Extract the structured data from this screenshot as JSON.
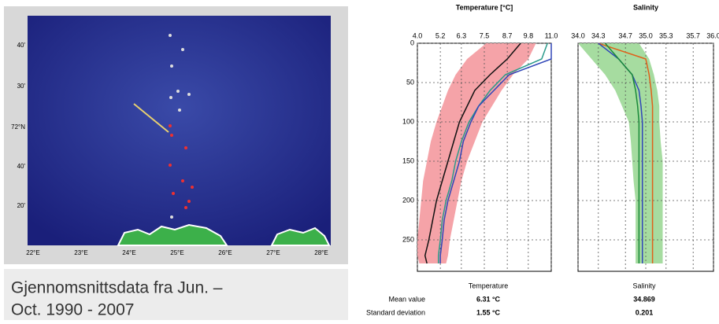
{
  "map": {
    "x_labels": [
      "22°E",
      "23°E",
      "24°E",
      "25°E",
      "26°E",
      "27°E",
      "28°E"
    ],
    "y_labels": [
      "40'",
      "30'",
      "72°N",
      "40'",
      "20'"
    ]
  },
  "caption": [
    "Gjennomsnittsdata fra Jun. –",
    "Oct. 1990 - 2007"
  ],
  "stats": {
    "row_labels": [
      "Mean value",
      "Standard deviation"
    ],
    "temperature": {
      "label": "Temperature",
      "mean": "6.31 °C",
      "sd": "1.55 °C"
    },
    "salinity": {
      "label": "Salinity",
      "mean": "34.869",
      "sd": "0.201"
    }
  },
  "chart_data": [
    {
      "type": "line",
      "title": "Temperature [°C]",
      "y": [
        0,
        20,
        40,
        60,
        80,
        100,
        125,
        150,
        175,
        200,
        225,
        250,
        270,
        280
      ],
      "band": {
        "color": "#f5a3a8",
        "lower": [
          7.6,
          6.6,
          6.0,
          5.6,
          5.3,
          5.0,
          4.7,
          4.5,
          4.3,
          4.2,
          4.1,
          4.0,
          4.0,
          4.1
        ],
        "upper": [
          10.2,
          9.8,
          9.0,
          8.4,
          7.9,
          7.4,
          7.0,
          6.6,
          6.3,
          6.1,
          5.9,
          5.7,
          5.6,
          5.5
        ]
      },
      "series": [
        {
          "color": "#2a9a8a",
          "values": [
            10.8,
            10.5,
            8.6,
            7.8,
            7.2,
            6.7,
            6.3,
            6.0,
            5.8,
            5.5,
            5.3,
            5.2,
            5.1,
            5.1
          ]
        },
        {
          "color": "#3046b8",
          "values": [
            11.0,
            11.0,
            8.8,
            8.0,
            7.2,
            6.8,
            6.4,
            6.2,
            5.9,
            5.6,
            5.4,
            5.3,
            5.2,
            5.2
          ]
        },
        {
          "color": "#111111",
          "values": [
            9.4,
            8.7,
            7.8,
            7.0,
            6.6,
            6.2,
            5.9,
            5.6,
            5.3,
            5.0,
            4.8,
            4.6,
            4.4,
            4.5
          ]
        }
      ],
      "xlim": [
        4.0,
        11.0
      ],
      "xticks": [
        {
          "value": 4.0,
          "label": "4.0"
        },
        5.2,
        6.3,
        7.5,
        8.7,
        9.8,
        {
          "value": 11.0,
          "label": "11.0"
        }
      ],
      "ylim": [
        0,
        290
      ],
      "yticks": [
        0,
        50,
        100,
        150,
        200,
        250
      ],
      "grid": true
    },
    {
      "type": "line",
      "title": "Salinity",
      "y": [
        0,
        20,
        40,
        60,
        80,
        100,
        125,
        150,
        175,
        200,
        225,
        250,
        270,
        280
      ],
      "band": {
        "color": "#a6dca0",
        "lower": [
          34.0,
          34.2,
          34.4,
          34.55,
          34.65,
          34.75,
          34.78,
          34.8,
          34.82,
          34.85,
          34.85,
          34.85,
          34.85,
          34.85
        ],
        "upper": [
          34.9,
          35.05,
          35.12,
          35.17,
          35.2,
          35.2,
          35.22,
          35.25,
          35.25,
          35.25,
          35.25,
          35.25,
          35.25,
          35.25
        ]
      },
      "series": [
        {
          "color": "#e0601a",
          "values": [
            34.3,
            35.0,
            35.05,
            35.08,
            35.1,
            35.1,
            35.1,
            35.1,
            35.1,
            35.1,
            35.1,
            35.1,
            35.1,
            35.1
          ]
        },
        {
          "color": "#3046b8",
          "values": [
            34.3,
            34.6,
            34.8,
            34.9,
            34.93,
            34.95,
            34.95,
            34.95,
            34.95,
            34.95,
            34.95,
            34.95,
            34.95,
            34.95
          ]
        },
        {
          "color": "#1a8a3a",
          "values": [
            34.4,
            34.6,
            34.8,
            34.85,
            34.88,
            34.9,
            34.9,
            34.9,
            34.9,
            34.9,
            34.9,
            34.9,
            34.9,
            34.9
          ]
        }
      ],
      "xlim": [
        {
          "value": 34.0,
          "label": "34.0"
        },
        {
          "value": 36.0,
          "label": "36.0"
        }
      ],
      "xticks": [
        {
          "value": 34.0,
          "label": "34.0"
        },
        34.3,
        34.7,
        {
          "value": 35.0,
          "label": "35.0"
        },
        35.3,
        35.7,
        {
          "value": 36.0,
          "label": "36.0"
        }
      ],
      "ylim": [
        0,
        290
      ],
      "yticks": [
        0,
        50,
        100,
        150,
        200,
        250
      ],
      "grid": true
    }
  ]
}
